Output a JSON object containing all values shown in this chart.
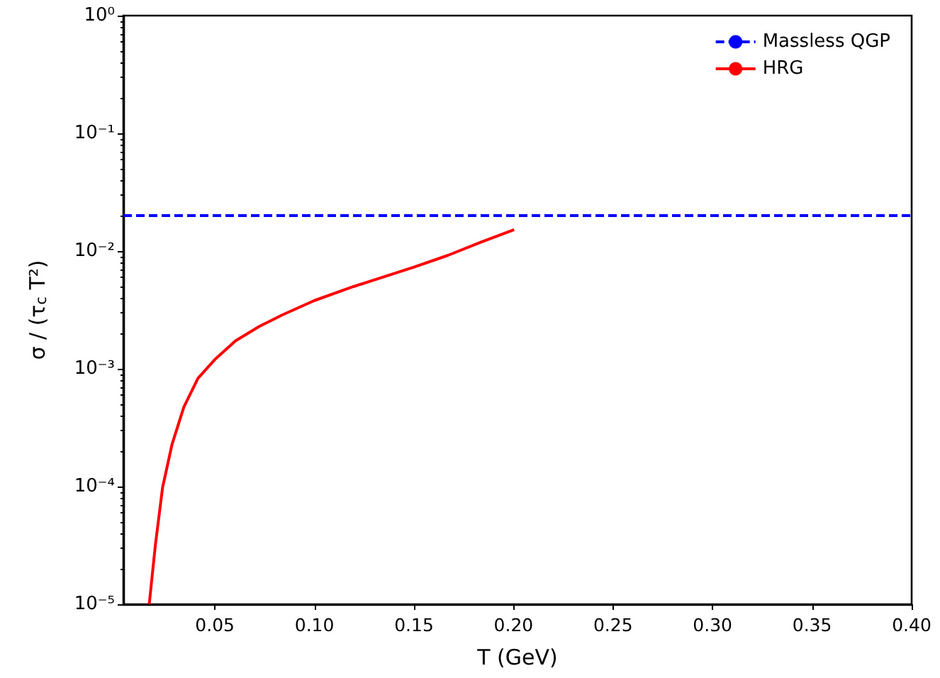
{
  "chart_data": {
    "type": "line",
    "xlabel": "T (GeV)",
    "ylabel": "σ / (τ$_{c}$ T²)",
    "log": "y",
    "grid": false,
    "legend": "top right",
    "marker": "none",
    "xlim": [
      0.004,
      0.4
    ],
    "xticks": [
      {
        "value": 0.05,
        "label": "0.05"
      },
      {
        "value": 0.1,
        "label": "0.10"
      },
      {
        "value": 0.15,
        "label": "0.15"
      },
      {
        "value": 0.2,
        "label": "0.20"
      },
      {
        "value": 0.25,
        "label": "0.25"
      },
      {
        "value": 0.3,
        "label": "0.30"
      },
      {
        "value": 0.35,
        "label": "0.35"
      },
      {
        "value": 0.4,
        "label": "0.40"
      }
    ],
    "ylim": [
      1e-05,
      1
    ],
    "yticks": [
      {
        "value": 1e-05,
        "label": "10⁻⁵"
      },
      {
        "value": 0.0001,
        "label": "10⁻⁴"
      },
      {
        "value": 0.001,
        "label": "10⁻³"
      },
      {
        "value": 0.01,
        "label": "10⁻²"
      },
      {
        "value": 0.1,
        "label": "10⁻¹"
      },
      {
        "value": 1,
        "label": "10⁰"
      }
    ],
    "series": [
      {
        "name": "Massless QGP",
        "color": "#0000ff",
        "line_style": "dashed",
        "x": [
          0.004,
          0.4
        ],
        "values": [
          0.02,
          0.02
        ]
      },
      {
        "name": "HRG",
        "color": "#ff0000",
        "line_style": "solid",
        "x": [
          0.017,
          0.0201,
          0.0237,
          0.0284,
          0.0344,
          0.0415,
          0.05,
          0.0604,
          0.0723,
          0.0841,
          0.1,
          0.1197,
          0.15,
          0.1671,
          0.1837,
          0.2003
        ],
        "values": [
          1e-05,
          3.2e-05,
          9.8e-05,
          0.000226,
          0.000474,
          0.00083,
          0.0012,
          0.00173,
          0.00229,
          0.00288,
          0.0038,
          0.005,
          0.0073,
          0.0092,
          0.0119,
          0.0152
        ]
      }
    ]
  }
}
